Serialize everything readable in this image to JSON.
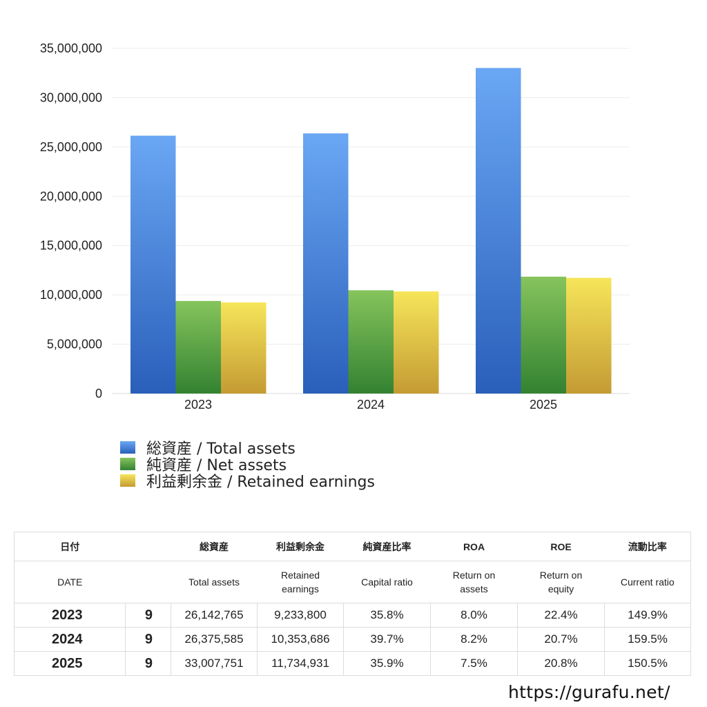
{
  "chart_data": {
    "type": "bar",
    "categories": [
      "2023",
      "2024",
      "2025"
    ],
    "series": [
      {
        "name": "総資産 / Total assets",
        "values": [
          26142765,
          26375585,
          33007751
        ],
        "color_top": "#6aa7f4",
        "color_bottom": "#2a5fba"
      },
      {
        "name": "純資産 / Net assets",
        "values": [
          9386700,
          10472000,
          11850000
        ],
        "color_top": "#86c45c",
        "color_bottom": "#338231"
      },
      {
        "name": "利益剰余金 / Retained earnings",
        "values": [
          9233800,
          10353686,
          11734931
        ],
        "color_top": "#f6e55a",
        "color_bottom": "#c49b33"
      }
    ],
    "ylim": [
      0,
      35000000
    ],
    "yticks": [
      "0",
      "5,000,000",
      "10,000,000",
      "15,000,000",
      "20,000,000",
      "25,000,000",
      "30,000,000",
      "35,000,000"
    ],
    "ytick_values": [
      0,
      5000000,
      10000000,
      15000000,
      20000000,
      25000000,
      30000000,
      35000000
    ],
    "grid": true,
    "legend_position": "bottom-left"
  },
  "table": {
    "headers_jp": [
      "日付",
      "",
      "総資産",
      "利益剰余金",
      "純資産比率",
      "ROA",
      "ROE",
      "流動比率"
    ],
    "headers_en": [
      "DATE",
      "",
      "Total assets",
      "Retained earnings",
      "Capital ratio",
      "Return on assets",
      "Return on equity",
      "Current ratio"
    ],
    "rows": [
      {
        "year": "2023",
        "month": "9",
        "total_assets": "26,142,765",
        "retained_earnings": "9,233,800",
        "capital_ratio": "35.8%",
        "roa": "8.0%",
        "roe": "22.4%",
        "current_ratio": "149.9%"
      },
      {
        "year": "2024",
        "month": "9",
        "total_assets": "26,375,585",
        "retained_earnings": "10,353,686",
        "capital_ratio": "39.7%",
        "roa": "8.2%",
        "roe": "20.7%",
        "current_ratio": "159.5%"
      },
      {
        "year": "2025",
        "month": "9",
        "total_assets": "33,007,751",
        "retained_earnings": "11,734,931",
        "capital_ratio": "35.9%",
        "roa": "7.5%",
        "roe": "20.8%",
        "current_ratio": "150.5%"
      }
    ]
  },
  "footer": {
    "url": "https://gurafu.net/"
  }
}
